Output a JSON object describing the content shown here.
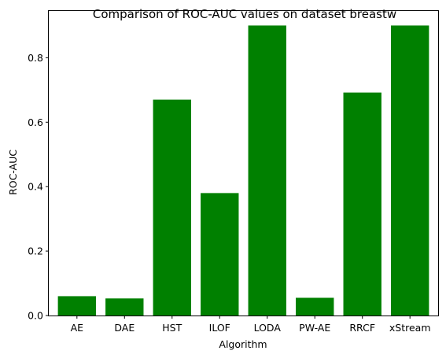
{
  "chart_data": {
    "type": "bar",
    "title": "Comparison of ROC-AUC values on dataset breastw",
    "xlabel": "Algorithm",
    "ylabel": "ROC-AUC",
    "categories": [
      "AE",
      "DAE",
      "HST",
      "ILOF",
      "LODA",
      "PW-AE",
      "RRCF",
      "xStream"
    ],
    "values": [
      0.06,
      0.053,
      0.67,
      0.38,
      0.9,
      0.055,
      0.692,
      0.9
    ],
    "ylim": [
      0,
      0.945
    ],
    "yticks": [
      0.0,
      0.2,
      0.4,
      0.6,
      0.8
    ],
    "ytick_labels": [
      "0.0",
      "0.2",
      "0.4",
      "0.6",
      "0.8"
    ],
    "bar_color": "#008000",
    "grid": false,
    "legend": "none"
  }
}
